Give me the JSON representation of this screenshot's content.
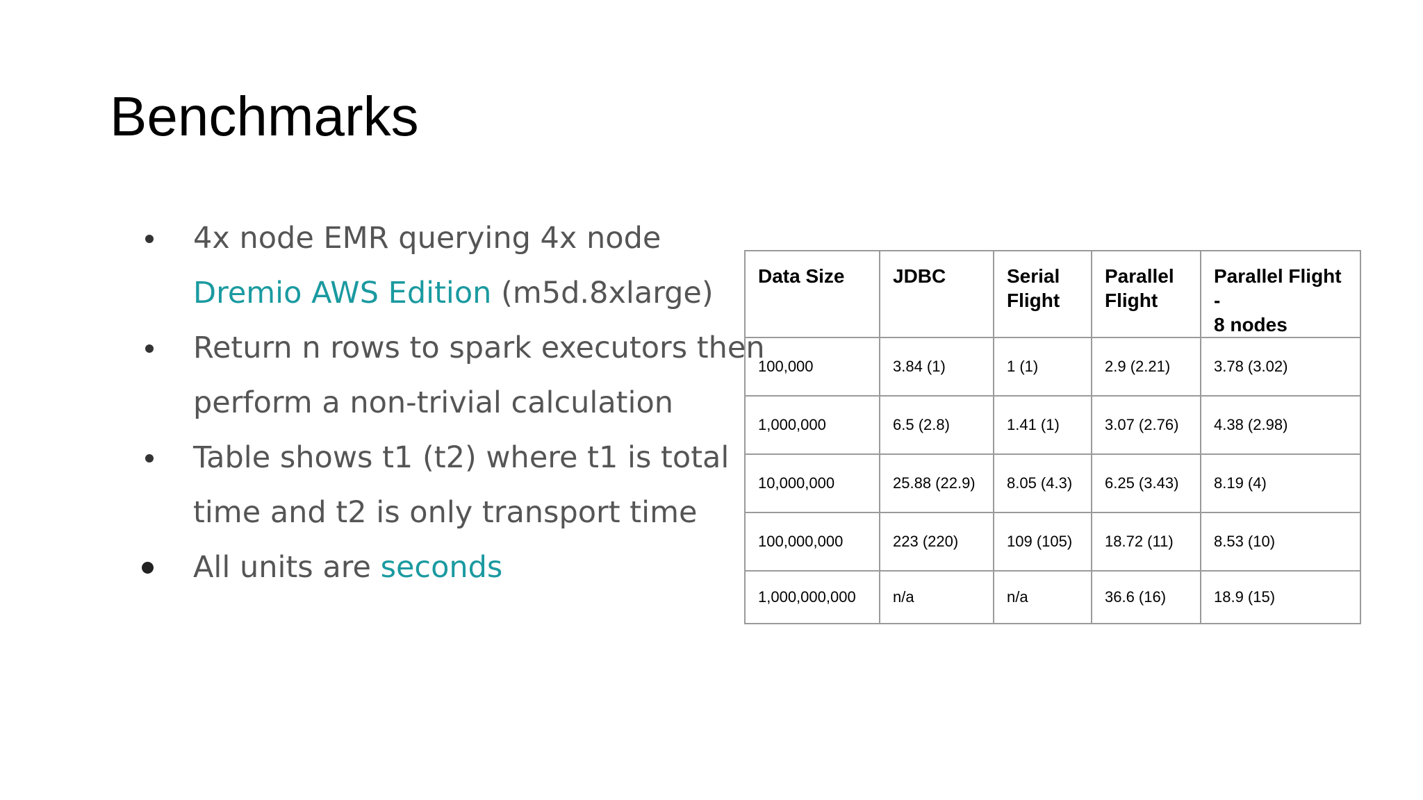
{
  "title": "Benchmarks",
  "bullets": {
    "b1": {
      "line1": "4x node EMR querying 4x node",
      "link": "Dremio AWS Edition",
      "rest": " (m5d.8xlarge)"
    },
    "b2": {
      "line1": "Return n rows to spark executors then",
      "line2": "perform a non-trivial calculation"
    },
    "b3": {
      "line1": "Table shows t1 (t2) where t1 is total",
      "line2": "time and t2 is only transport time"
    },
    "b4": {
      "prefix": "All units are ",
      "link": "seconds"
    }
  },
  "colors": {
    "accent": "#1a9aa0",
    "bullet_text": "#555555",
    "table_border": "#9a9a9a"
  },
  "table": {
    "headers": {
      "data_size": "Data Size",
      "jdbc": "JDBC",
      "serial_1": "Serial",
      "serial_2": "Flight",
      "parallel_1": "Parallel",
      "parallel_2": "Flight",
      "parallel8_1": "Parallel Flight -",
      "parallel8_2": "8 nodes"
    },
    "rows": [
      {
        "data_size": "100,000",
        "jdbc": "3.84 (1)",
        "serial_flight": "1 (1)",
        "parallel_flight": "2.9 (2.21)",
        "parallel_flight_8_nodes": "3.78 (3.02)"
      },
      {
        "data_size": "1,000,000",
        "jdbc": "6.5 (2.8)",
        "serial_flight": "1.41 (1)",
        "parallel_flight": "3.07 (2.76)",
        "parallel_flight_8_nodes": "4.38 (2.98)"
      },
      {
        "data_size": "10,000,000",
        "jdbc": "25.88 (22.9)",
        "serial_flight": "8.05 (4.3)",
        "parallel_flight": "6.25 (3.43)",
        "parallel_flight_8_nodes": "8.19 (4)"
      },
      {
        "data_size": "100,000,000",
        "jdbc": "223 (220)",
        "serial_flight": "109 (105)",
        "parallel_flight": "18.72 (11)",
        "parallel_flight_8_nodes": "8.53 (10)"
      },
      {
        "data_size": "1,000,000,000",
        "jdbc": "n/a",
        "serial_flight": "n/a",
        "parallel_flight": "36.6 (16)",
        "parallel_flight_8_nodes": "18.9 (15)"
      }
    ]
  }
}
